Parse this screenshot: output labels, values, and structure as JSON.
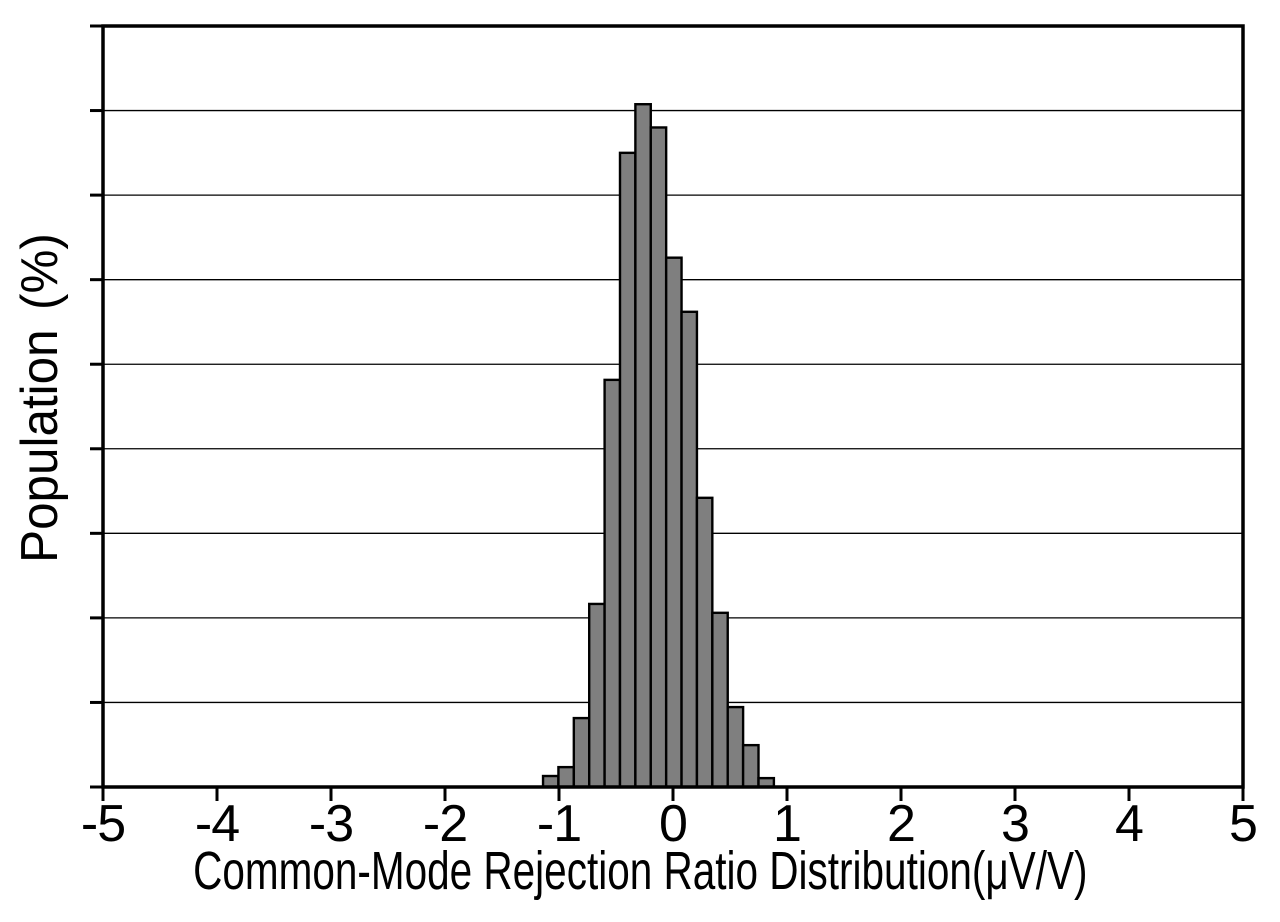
{
  "chart_data": {
    "type": "bar",
    "subtype": "histogram",
    "title": "",
    "xlabel": "Common-Mode Rejection Ratio Distribution(μV/V)",
    "ylabel": "Population (%)",
    "xlim": [
      -5,
      5
    ],
    "ylim": [
      0,
      18
    ],
    "x_tick_values": [
      -5,
      -4,
      -3,
      -2,
      -1,
      0,
      1,
      2,
      3,
      4,
      5
    ],
    "x_tick_labels": [
      "-5",
      "-4",
      "-3",
      "-2",
      "-1",
      "0",
      "1",
      "2",
      "3",
      "4",
      "5"
    ],
    "y_tick_labels_visible": false,
    "y_gridline_interval": 2,
    "grid": "horizontal",
    "legend": "none",
    "bar_fill_color": "#7f7f7f",
    "bar_edge_color": "#000000",
    "axis_color": "#000000",
    "bin_edges": [
      -1.14,
      -1.005,
      -0.87,
      -0.735,
      -0.6,
      -0.465,
      -0.33,
      -0.195,
      -0.06,
      0.075,
      0.21,
      0.345,
      0.48,
      0.615,
      0.75,
      0.885
    ],
    "values_pct": [
      0.26,
      0.47,
      1.63,
      4.33,
      9.63,
      15.0,
      16.15,
      15.6,
      12.52,
      11.24,
      6.84,
      4.12,
      1.89,
      0.99,
      0.21
    ]
  }
}
